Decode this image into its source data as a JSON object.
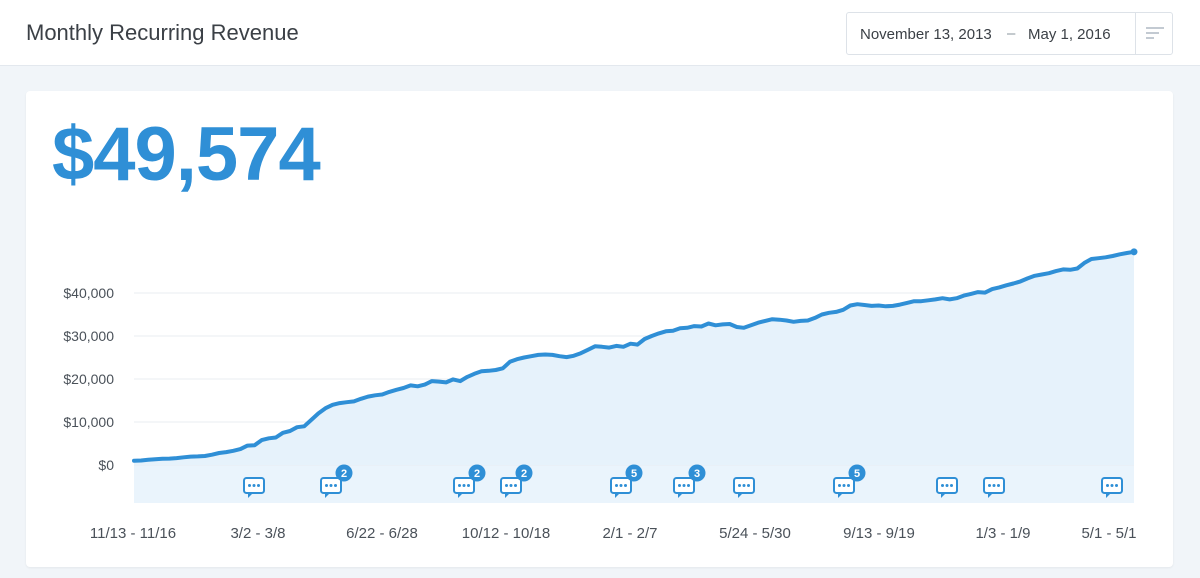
{
  "header": {
    "title": "Monthly Recurring Revenue",
    "date_start": "November 13, 2013",
    "date_separator": "–",
    "date_end": "May 1, 2016",
    "filter_icon": "filter-lines-icon"
  },
  "metric": {
    "value": "$49,574"
  },
  "colors": {
    "accent": "#2f8fd6",
    "fill": "#e6f2fb",
    "annotation_band": "#eaf4fc"
  },
  "chart_data": {
    "type": "area",
    "title": "",
    "xlabel": "",
    "ylabel": "",
    "ylim": [
      0,
      50000
    ],
    "grid": true,
    "y_ticks": [
      0,
      10000,
      20000,
      30000,
      40000
    ],
    "y_tick_labels": [
      "$0",
      "$10,000",
      "$20,000",
      "$30,000",
      "$40,000"
    ],
    "x_tick_labels": [
      "11/13 - 11/16",
      "3/2 - 3/8",
      "6/22 - 6/28",
      "10/12 - 10/18",
      "2/1 - 2/7",
      "5/24 - 5/30",
      "9/13 - 9/19",
      "1/3 - 1/9",
      "5/1 - 5/1"
    ],
    "series": [
      {
        "values": [
          1000,
          1050,
          1200,
          1350,
          1450,
          1500,
          1600,
          1800,
          1950,
          2000,
          2100,
          2400,
          2800,
          3000,
          3300,
          3700,
          4500,
          4600,
          5800,
          6200,
          6400,
          7500,
          7900,
          8800,
          9000,
          10500,
          12000,
          13200,
          14000,
          14400,
          14600,
          14800,
          15400,
          15900,
          16200,
          16400,
          17000,
          17500,
          17900,
          18500,
          18300,
          18700,
          19500,
          19400,
          19200,
          19900,
          19500,
          20500,
          21200,
          21800,
          21900,
          22100,
          22500,
          24000,
          24600,
          25000,
          25300,
          25600,
          25700,
          25600,
          25300,
          25100,
          25400,
          26000,
          26800,
          27600,
          27500,
          27300,
          27700,
          27500,
          28200,
          28000,
          29300,
          30000,
          30600,
          31100,
          31200,
          31800,
          31900,
          32300,
          32200,
          32900,
          32500,
          32700,
          32800,
          32100,
          31900,
          32500,
          33100,
          33500,
          33900,
          33800,
          33600,
          33300,
          33500,
          33600,
          34200,
          35000,
          35400,
          35600,
          36100,
          37100,
          37400,
          37200,
          37000,
          37100,
          36900,
          37000,
          37300,
          37700,
          38100,
          38100,
          38300,
          38500,
          38800,
          38500,
          38800,
          39400,
          39800,
          40200,
          40100,
          40900,
          41300,
          41800,
          42200,
          42700,
          43400,
          44000,
          44300,
          44600,
          45100,
          45500,
          45400,
          45700,
          47000,
          47900,
          48100,
          48300,
          48600,
          49000,
          49300,
          49574
        ]
      }
    ],
    "annotations": [
      {
        "position": 0.12,
        "count": ""
      },
      {
        "position": 0.197,
        "count": "2"
      },
      {
        "position": 0.33,
        "count": "2"
      },
      {
        "position": 0.377,
        "count": "2"
      },
      {
        "position": 0.487,
        "count": "5"
      },
      {
        "position": 0.55,
        "count": "3"
      },
      {
        "position": 0.61,
        "count": ""
      },
      {
        "position": 0.71,
        "count": "5"
      },
      {
        "position": 0.813,
        "count": ""
      },
      {
        "position": 0.86,
        "count": ""
      },
      {
        "position": 0.978,
        "count": ""
      }
    ]
  }
}
